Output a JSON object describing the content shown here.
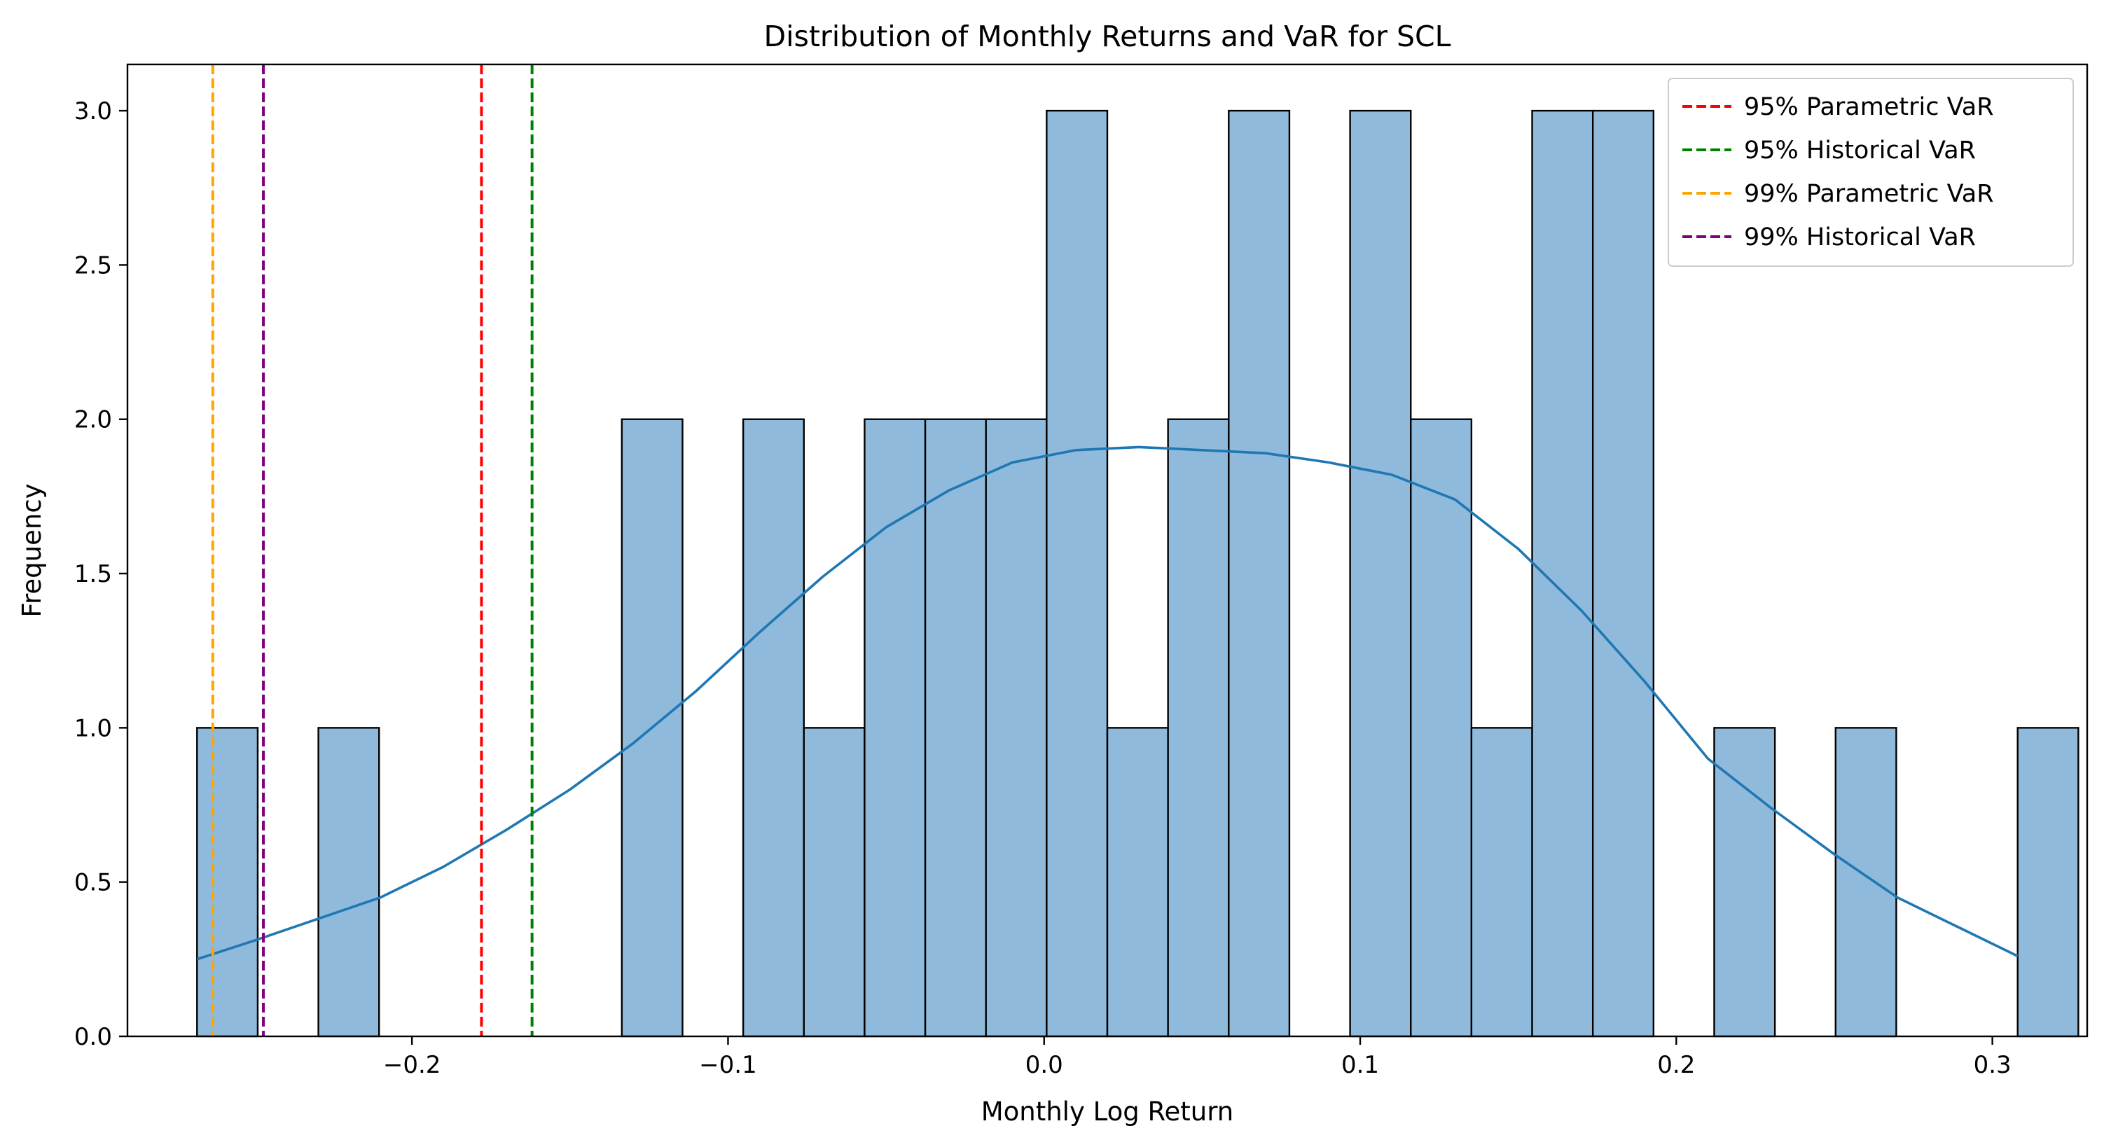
{
  "chart_data": {
    "type": "bar",
    "title": "Distribution of Monthly Returns and VaR for SCL",
    "xlabel": "Monthly Log Return",
    "ylabel": "Frequency",
    "xlim": [
      -0.29,
      0.33
    ],
    "ylim": [
      0,
      3.15
    ],
    "xticks": [
      -0.2,
      -0.1,
      0.0,
      0.1,
      0.2,
      0.3
    ],
    "xtick_labels": [
      "−0.2",
      "−0.1",
      "0.0",
      "0.1",
      "0.2",
      "0.3"
    ],
    "yticks": [
      0.0,
      0.5,
      1.0,
      1.5,
      2.0,
      2.5,
      3.0
    ],
    "ytick_labels": [
      "0.0",
      "0.5",
      "1.0",
      "1.5",
      "2.0",
      "2.5",
      "3.0"
    ],
    "grid": false,
    "legend_position": "top-right",
    "histogram": {
      "bin_start": -0.268,
      "bin_width": 0.0192,
      "counts": [
        1,
        0,
        1,
        0,
        0,
        0,
        0,
        2,
        0,
        2,
        1,
        2,
        2,
        2,
        3,
        1,
        2,
        3,
        0,
        3,
        2,
        1,
        3,
        3,
        0,
        1,
        0,
        1,
        0,
        0,
        1
      ],
      "fill_color": "#8fbadb",
      "edge_color": "#000000"
    },
    "kde": {
      "color": "#1f77b4",
      "x": [
        -0.268,
        -0.25,
        -0.23,
        -0.21,
        -0.19,
        -0.17,
        -0.15,
        -0.13,
        -0.11,
        -0.09,
        -0.07,
        -0.05,
        -0.03,
        -0.01,
        0.01,
        0.03,
        0.05,
        0.07,
        0.09,
        0.11,
        0.13,
        0.15,
        0.17,
        0.19,
        0.21,
        0.23,
        0.25,
        0.27,
        0.29,
        0.308
      ],
      "y": [
        0.25,
        0.31,
        0.38,
        0.45,
        0.55,
        0.67,
        0.8,
        0.95,
        1.12,
        1.31,
        1.49,
        1.65,
        1.77,
        1.86,
        1.9,
        1.91,
        1.9,
        1.89,
        1.86,
        1.82,
        1.74,
        1.58,
        1.38,
        1.15,
        0.9,
        0.74,
        0.59,
        0.45,
        0.35,
        0.26
      ]
    },
    "var_lines": [
      {
        "name": "95% Parametric VaR",
        "x": -0.178,
        "color": "#ff0000"
      },
      {
        "name": "95% Historical VaR",
        "x": -0.162,
        "color": "#008000"
      },
      {
        "name": "99% Parametric VaR",
        "x": -0.263,
        "color": "#ffa500"
      },
      {
        "name": "99% Historical VaR",
        "x": -0.247,
        "color": "#800080"
      }
    ]
  }
}
